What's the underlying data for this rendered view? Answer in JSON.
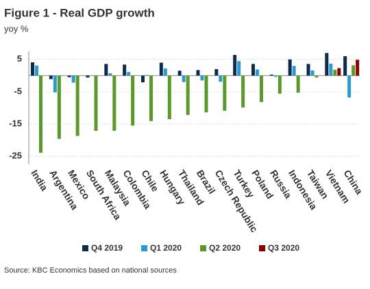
{
  "chart_data": {
    "type": "bar",
    "title": "Figure 1 - Real GDP growth",
    "subtitle": "yoy %",
    "source": "Source: KBC Economics based on national sources",
    "categories": [
      "India",
      "Argentina",
      "Mexico",
      "South Africa",
      "Malaysia",
      "Colombia",
      "Chile",
      "Hungary",
      "Thailand",
      "Brazil",
      "Czech Republic",
      "Turkey",
      "Poland",
      "Russia",
      "Indonesia",
      "Taiwan",
      "Vietnam",
      "China"
    ],
    "series": [
      {
        "name": "Q4 2019",
        "color": "#0d2a4f",
        "values": [
          4.1,
          -1.1,
          -0.5,
          -0.6,
          3.6,
          3.4,
          -2.1,
          4.0,
          1.5,
          1.7,
          2.0,
          6.4,
          3.6,
          0.3,
          5.0,
          3.6,
          7.0,
          6.0
        ]
      },
      {
        "name": "Q1 2020",
        "color": "#2a9bd0",
        "values": [
          3.1,
          -5.2,
          -2.2,
          0.1,
          0.7,
          1.1,
          0.2,
          2.2,
          -2.0,
          -1.5,
          -1.9,
          4.5,
          1.9,
          -0.4,
          3.0,
          1.6,
          3.7,
          -6.8
        ]
      },
      {
        "name": "Q2 2020",
        "color": "#5b9a2a",
        "values": [
          -23.9,
          -19.6,
          -18.7,
          -17.1,
          -17.1,
          -15.5,
          -14.1,
          -13.5,
          -12.2,
          -11.4,
          -10.9,
          -9.9,
          -8.2,
          -5.6,
          -5.3,
          -0.6,
          1.8,
          3.2
        ]
      },
      {
        "name": "Q3 2020",
        "color": "#8b0000",
        "values": [
          null,
          null,
          null,
          null,
          null,
          null,
          null,
          null,
          null,
          null,
          null,
          null,
          null,
          null,
          null,
          null,
          2.3,
          4.9
        ]
      }
    ],
    "ylim": [
      -27.5,
      7.5
    ],
    "yticks": [
      5,
      -5,
      -15,
      -25
    ],
    "grid": true
  }
}
